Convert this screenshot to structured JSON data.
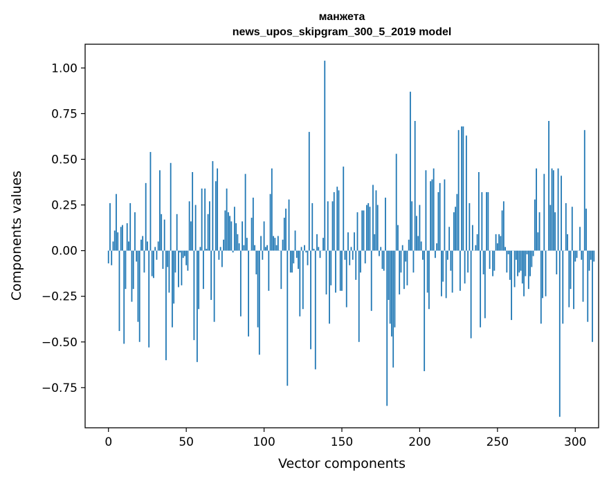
{
  "chart_data": {
    "type": "bar",
    "title": "манжета",
    "subtitle": "news_upos_skipgram_300_5_2019 model",
    "xlabel": "Vector components",
    "ylabel": "Components values",
    "xlim": [
      -15,
      315
    ],
    "ylim": [
      -0.97,
      1.13
    ],
    "xticks": [
      0,
      50,
      100,
      150,
      200,
      250,
      300
    ],
    "xtick_labels": [
      "0",
      "50",
      "100",
      "150",
      "200",
      "250",
      "300"
    ],
    "yticks": [
      -0.75,
      -0.5,
      -0.25,
      0.0,
      0.25,
      0.5,
      0.75,
      1.0
    ],
    "ytick_labels": [
      "−0.75",
      "−0.50",
      "−0.25",
      "0.00",
      "0.25",
      "0.50",
      "0.75",
      "1.00"
    ],
    "grid": false,
    "bar_color": "#1f77b4",
    "values": [
      -0.07,
      0.26,
      -0.08,
      0.05,
      0.11,
      0.31,
      0.1,
      -0.44,
      0.13,
      0.14,
      -0.51,
      -0.21,
      0.15,
      0.05,
      0.26,
      -0.28,
      -0.21,
      0.21,
      -0.06,
      -0.39,
      -0.5,
      0.06,
      0.08,
      -0.12,
      0.37,
      0.05,
      -0.53,
      0.54,
      -0.14,
      -0.15,
      0.02,
      -0.05,
      0.05,
      0.44,
      0.2,
      -0.1,
      0.17,
      -0.6,
      -0.09,
      -0.23,
      0.48,
      -0.42,
      -0.29,
      -0.12,
      0.2,
      -0.2,
      -0.01,
      -0.19,
      -0.04,
      -0.03,
      -0.08,
      -0.11,
      0.27,
      0.16,
      0.43,
      -0.49,
      0.25,
      -0.61,
      -0.32,
      0.02,
      0.34,
      -0.21,
      0.34,
      0.01,
      0.2,
      0.27,
      -0.27,
      0.49,
      -0.39,
      0.38,
      0.45,
      -0.05,
      0.02,
      -0.09,
      0.06,
      0.22,
      0.34,
      0.21,
      0.19,
      0.16,
      -0.01,
      0.24,
      0.15,
      0.09,
      0.04,
      -0.36,
      0.16,
      0.03,
      0.42,
      0.07,
      -0.47,
      0.0,
      0.18,
      0.29,
      0.03,
      -0.13,
      -0.42,
      -0.57,
      0.08,
      -0.05,
      0.16,
      0.02,
      0.03,
      -0.22,
      0.31,
      0.45,
      0.08,
      0.07,
      0.03,
      0.08,
      0.0,
      -0.21,
      0.06,
      0.18,
      0.23,
      -0.74,
      0.28,
      -0.12,
      -0.12,
      -0.07,
      0.11,
      -0.04,
      -0.1,
      -0.36,
      0.02,
      -0.32,
      0.03,
      -0.01,
      -0.08,
      0.65,
      -0.54,
      0.26,
      0.01,
      -0.65,
      0.09,
      0.02,
      -0.04,
      0.0,
      0.07,
      1.04,
      -0.24,
      0.27,
      -0.4,
      -0.19,
      0.27,
      0.32,
      -0.23,
      0.35,
      0.33,
      -0.22,
      -0.22,
      0.46,
      -0.05,
      -0.31,
      0.1,
      -0.08,
      0.02,
      -0.05,
      0.1,
      -0.16,
      0.21,
      -0.5,
      -0.12,
      0.22,
      0.22,
      -0.07,
      0.25,
      0.26,
      0.24,
      -0.33,
      0.36,
      0.09,
      0.33,
      0.25,
      -0.03,
      0.02,
      -0.1,
      -0.11,
      0.29,
      -0.85,
      -0.27,
      -0.4,
      -0.47,
      -0.64,
      -0.42,
      0.53,
      0.14,
      -0.24,
      -0.12,
      0.03,
      -0.21,
      -0.06,
      -0.19,
      0.06,
      0.87,
      0.27,
      -0.12,
      0.71,
      0.19,
      0.08,
      0.25,
      0.05,
      -0.05,
      -0.66,
      0.44,
      -0.23,
      -0.32,
      0.38,
      0.39,
      0.45,
      -0.04,
      0.04,
      0.32,
      0.37,
      -0.25,
      -0.17,
      0.39,
      -0.26,
      -0.05,
      0.13,
      -0.11,
      -0.23,
      0.21,
      0.24,
      0.31,
      0.66,
      -0.22,
      0.68,
      0.68,
      -0.18,
      0.63,
      -0.12,
      0.26,
      -0.48,
      0.14,
      0.0,
      0.03,
      0.09,
      0.43,
      -0.42,
      0.32,
      -0.13,
      -0.37,
      0.32,
      0.32,
      -0.1,
      0.0,
      -0.14,
      -0.11,
      0.09,
      0.04,
      0.09,
      0.08,
      0.22,
      0.27,
      0.02,
      -0.12,
      -0.02,
      -0.16,
      -0.38,
      0.0,
      -0.2,
      -0.05,
      -0.14,
      -0.12,
      -0.11,
      -0.18,
      -0.25,
      -0.14,
      -0.02,
      -0.21,
      -0.14,
      -0.09,
      -0.03,
      0.28,
      0.45,
      0.1,
      0.21,
      -0.4,
      -0.26,
      0.42,
      -0.25,
      0.0,
      0.71,
      0.25,
      0.45,
      0.44,
      0.21,
      -0.13,
      0.45,
      -0.91,
      0.41,
      -0.4,
      0.0,
      0.26,
      0.09,
      -0.31,
      -0.21,
      0.24,
      -0.32,
      -0.06,
      -0.04,
      0.0,
      0.13,
      -0.05,
      -0.28,
      0.66,
      0.23,
      -0.39,
      -0.11,
      -0.05,
      -0.5,
      -0.06
    ]
  }
}
